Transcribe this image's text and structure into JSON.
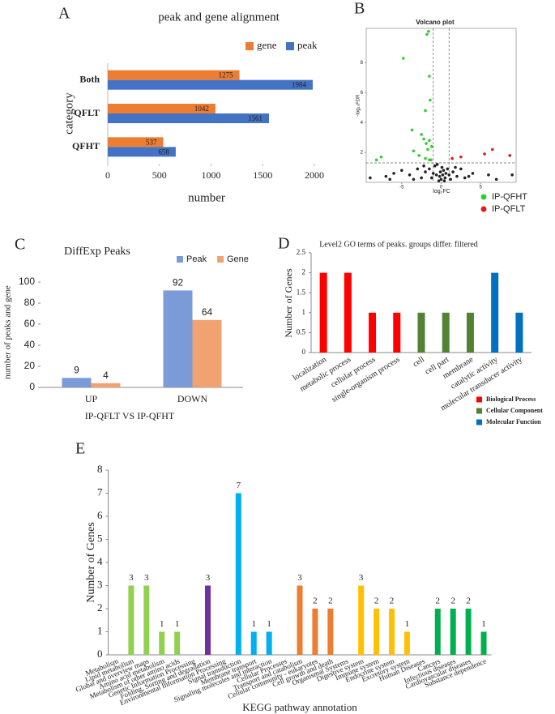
{
  "chart_data": [
    {
      "type": "hbar",
      "label": "A",
      "title": "peak and gene alignment",
      "categories": [
        "Both",
        "QFLT",
        "QFHT"
      ],
      "series": [
        {
          "name": "gene",
          "color": "#ed7d31",
          "values": [
            1275,
            1042,
            537
          ]
        },
        {
          "name": "peak",
          "color": "#4472c4",
          "values": [
            1984,
            1561,
            658
          ]
        }
      ],
      "xlim": [
        0,
        2000
      ],
      "xticks": [
        0,
        500,
        1000,
        1500,
        2000
      ],
      "x_label": "number",
      "y_label": "category",
      "data_labels": true
    },
    {
      "type": "scatter",
      "label": "B",
      "title": "Volcano plot",
      "x_label": "log₂FC",
      "y_label": "-log₁₀FDR",
      "xlim": [
        -9.5,
        9.5
      ],
      "ylim": [
        0,
        10.3
      ],
      "xticks": [
        -5,
        0,
        5
      ],
      "yticks": [
        2,
        4,
        6,
        8
      ],
      "thresholds": {
        "x": [
          -1,
          1
        ],
        "y": [
          1.3
        ]
      },
      "series": [
        {
          "color": "#222222",
          "x": [
            -0.5,
            0.3,
            -0.2,
            0.5,
            -1,
            1,
            -2,
            2,
            -3,
            3,
            -4,
            4,
            -5,
            -6,
            -7,
            6,
            0.1,
            -0.8,
            0.8,
            -1.5,
            1.5,
            -2.5,
            2.5,
            0,
            -0.3,
            0.4,
            -3.5,
            3.5,
            -6.5,
            7,
            -9,
            9,
            -0.6,
            0.6,
            -1.2,
            1.2,
            -0.1,
            0.2,
            -2.2,
            1.8
          ],
          "values": [
            1.2,
            0.8,
            0.4,
            0.3,
            0.6,
            0.5,
            0.7,
            0.4,
            0.9,
            0.3,
            0.5,
            0.6,
            0.8,
            0.6,
            0.4,
            0.5,
            1.0,
            1.1,
            0.9,
            0.9,
            0.7,
            0.3,
            0.9,
            0.2,
            0.1,
            0.1,
            0.2,
            0.4,
            0.2,
            0.2,
            0.3,
            0.5,
            0.5,
            0.6,
            0.3,
            0.2,
            0.7,
            0.5,
            1.1,
            1.0
          ]
        },
        {
          "name": "IP-QFHT",
          "color": "#33cc33",
          "x": [
            -1.8,
            -1.6,
            -4.8,
            -1.5,
            -1.4,
            -2,
            -3.7,
            -2.5,
            -2.2,
            -1.9,
            -1.5,
            -1.2,
            -3.5,
            -2.8,
            -2,
            -1.5,
            -7.6,
            -8.2,
            -1.3,
            -1.7
          ],
          "values": [
            9.9,
            10.1,
            8.3,
            7.1,
            5.5,
            4.8,
            3.5,
            3.2,
            2.9,
            2.6,
            2.8,
            2.4,
            2.1,
            1.8,
            1.6,
            1.5,
            1.7,
            1.5,
            1.5,
            2.2
          ]
        },
        {
          "name": "IP-QFLT",
          "color": "#e41a1c",
          "x": [
            6.5,
            8.7,
            5.5,
            2.5,
            1.4
          ],
          "values": [
            2.2,
            1.8,
            1.9,
            1.7,
            1.6
          ]
        }
      ]
    },
    {
      "type": "bar",
      "label": "C",
      "title": "DiffExp Peaks",
      "categories": [
        "UP",
        "DOWN"
      ],
      "series": [
        {
          "name": "Peak",
          "color": "#7b9bd8",
          "values": [
            9,
            92
          ]
        },
        {
          "name": "Gene",
          "color": "#f0a370",
          "values": [
            4,
            64
          ]
        }
      ],
      "ylim": [
        0,
        100
      ],
      "yticks": [
        0,
        20,
        40,
        60,
        80,
        100
      ],
      "x_label": "IP-QFLT VS IP-QFHT",
      "y_label": "number of peaks and gene",
      "data_labels": true
    },
    {
      "type": "bar",
      "label": "D",
      "title": "Level2 GO terms of peaks. groups differ. filtered",
      "categories": [
        "localization",
        "metabolic process",
        "cellular process",
        "single-organism process",
        "cell",
        "cell part",
        "membrane",
        "catalytic activity",
        "molecular transducer activity"
      ],
      "values": [
        2,
        2,
        1,
        1,
        1,
        1,
        1,
        2,
        1
      ],
      "colors": [
        "#ff0000",
        "#ff0000",
        "#ff0000",
        "#ff0000",
        "#548235",
        "#548235",
        "#548235",
        "#0070c0",
        "#0070c0"
      ],
      "groups": [
        {
          "name": "Biological Process",
          "color": "#ff0000"
        },
        {
          "name": "Cellular Component",
          "color": "#548235"
        },
        {
          "name": "Molecular Function",
          "color": "#0070c0"
        }
      ],
      "ylim": [
        0,
        2.5
      ],
      "yticks": [
        0,
        0.5,
        1,
        1.5,
        2,
        2.5
      ],
      "y_label": "Number of Genes"
    },
    {
      "type": "bar",
      "label": "E",
      "categories": [
        "Metabolism",
        "Lipid metabolism",
        "Global and overview maps",
        "Amino acid metabolism",
        "Metabolism of other amino acids",
        "Genetic Information Processing",
        "Folding, Sorting and degradation",
        "Environmental Information Processing",
        "Signal transduction",
        "Membrane transport",
        "Signaling molecules and interaction",
        "Cellular Processes",
        "Transport and catabolism",
        "Cellular community - eukaryotes",
        "Cell growth and death",
        "Organismal Systems",
        "Digestive system",
        "Immune system",
        "Endocrine system",
        "Excretory system",
        "Human Diseases",
        "Cancers",
        "Infectious diseases",
        "Cardiovascular diseases",
        "Substance dependence"
      ],
      "values": [
        null,
        3,
        3,
        1,
        1,
        null,
        3,
        null,
        7,
        1,
        1,
        null,
        3,
        2,
        2,
        null,
        3,
        2,
        2,
        1,
        null,
        2,
        2,
        2,
        1
      ],
      "colors": [
        "#92d050",
        "#92d050",
        "#92d050",
        "#92d050",
        "#92d050",
        "#7030a0",
        "#7030a0",
        "#00b0f0",
        "#00b0f0",
        "#00b0f0",
        "#00b0f0",
        "#ed7d31",
        "#ed7d31",
        "#ed7d31",
        "#ed7d31",
        "#ffc000",
        "#ffc000",
        "#ffc000",
        "#ffc000",
        "#ffc000",
        "#00b050",
        "#00b050",
        "#00b050",
        "#00b050",
        "#00b050"
      ],
      "ylim": [
        0,
        8
      ],
      "yticks": [
        0,
        1,
        2,
        3,
        4,
        5,
        6,
        7,
        8
      ],
      "x_label": "KEGG pathway annotation",
      "y_label": "Number of Genes",
      "data_labels": true
    }
  ]
}
